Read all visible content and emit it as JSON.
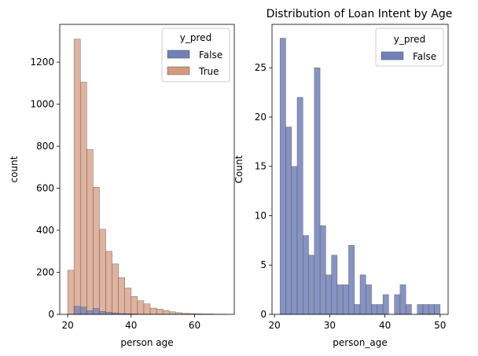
{
  "chart_data": [
    {
      "type": "bar",
      "subtype": "histogram",
      "title": "",
      "xlabel": "person age",
      "ylabel": "count",
      "xlim": [
        17.5,
        72.5
      ],
      "ylim": [
        0,
        1380
      ],
      "xticks": [
        20,
        40,
        60
      ],
      "yticks": [
        0,
        200,
        400,
        600,
        800,
        1000,
        1200
      ],
      "bin_width": 2,
      "legend": {
        "title": "y_pred",
        "placement": "top-right"
      },
      "series": [
        {
          "name": "True",
          "color": "#d49a7f",
          "bins": [
            {
              "x": 20,
              "value": 210
            },
            {
              "x": 22,
              "value": 1310
            },
            {
              "x": 24,
              "value": 1105
            },
            {
              "x": 26,
              "value": 785
            },
            {
              "x": 28,
              "value": 605
            },
            {
              "x": 30,
              "value": 405
            },
            {
              "x": 32,
              "value": 300
            },
            {
              "x": 34,
              "value": 240
            },
            {
              "x": 36,
              "value": 175
            },
            {
              "x": 38,
              "value": 125
            },
            {
              "x": 40,
              "value": 85
            },
            {
              "x": 42,
              "value": 65
            },
            {
              "x": 44,
              "value": 50
            },
            {
              "x": 46,
              "value": 30
            },
            {
              "x": 48,
              "value": 25
            },
            {
              "x": 50,
              "value": 18
            },
            {
              "x": 52,
              "value": 12
            },
            {
              "x": 54,
              "value": 8
            },
            {
              "x": 56,
              "value": 5
            },
            {
              "x": 58,
              "value": 4
            },
            {
              "x": 60,
              "value": 3
            },
            {
              "x": 62,
              "value": 2
            },
            {
              "x": 64,
              "value": 2
            },
            {
              "x": 66,
              "value": 1
            },
            {
              "x": 68,
              "value": 1
            }
          ]
        },
        {
          "name": "False",
          "color": "#7180b9",
          "bins": [
            {
              "x": 22,
              "value": 38
            },
            {
              "x": 24,
              "value": 35
            },
            {
              "x": 26,
              "value": 18
            },
            {
              "x": 28,
              "value": 28
            },
            {
              "x": 30,
              "value": 14
            },
            {
              "x": 32,
              "value": 10
            },
            {
              "x": 34,
              "value": 7
            },
            {
              "x": 36,
              "value": 4
            },
            {
              "x": 38,
              "value": 3
            },
            {
              "x": 40,
              "value": 2
            }
          ]
        }
      ]
    },
    {
      "type": "bar",
      "subtype": "histogram",
      "title": "Distribution of Loan Intent by Age",
      "xlabel": "person_age",
      "ylabel": "Count",
      "xlim": [
        19.55,
        51.45
      ],
      "ylim": [
        0,
        29.4
      ],
      "xticks": [
        20,
        30,
        40,
        50
      ],
      "yticks": [
        0,
        5,
        10,
        15,
        20,
        25
      ],
      "bin_width": 1.0357,
      "legend": {
        "title": "y_pred",
        "placement": "top-right"
      },
      "series": [
        {
          "name": "False",
          "color": "#7180b9",
          "values": [
            28,
            19,
            15,
            22,
            8,
            6,
            25,
            9,
            4,
            6,
            3,
            3,
            7,
            1,
            4,
            3,
            1,
            1,
            2,
            0,
            2,
            3,
            1,
            0,
            1,
            1,
            1,
            1
          ]
        }
      ]
    }
  ],
  "colors": {
    "axis": "#000000",
    "edge": "#555555"
  }
}
